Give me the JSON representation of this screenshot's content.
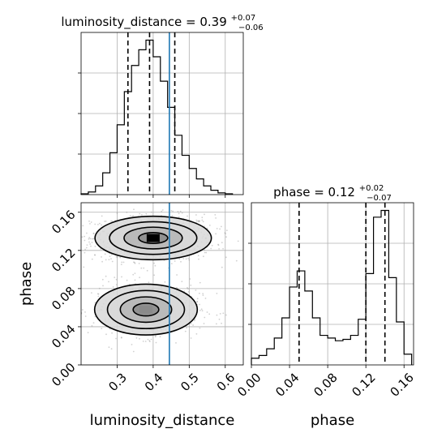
{
  "chart_data": [
    {
      "type": "histogram",
      "panel": "top-left",
      "parameter": "luminosity_distance",
      "title": {
        "prefix": "luminosity_distance = 0.39",
        "plus": "+0.07",
        "minus": "−0.06"
      },
      "xlim": [
        0.2,
        0.65
      ],
      "bin_edges": [
        0.2,
        0.22,
        0.24,
        0.26,
        0.28,
        0.3,
        0.32,
        0.34,
        0.36,
        0.38,
        0.4,
        0.42,
        0.44,
        0.46,
        0.48,
        0.5,
        0.52,
        0.54,
        0.56,
        0.58,
        0.6,
        0.62
      ],
      "counts": [
        1,
        3,
        10,
        25,
        48,
        80,
        118,
        148,
        166,
        177,
        158,
        130,
        100,
        68,
        45,
        30,
        18,
        10,
        5,
        2,
        1
      ],
      "quantiles": [
        0.33,
        0.39,
        0.46
      ],
      "truth": 0.445,
      "grid": true
    },
    {
      "type": "histogram",
      "panel": "bottom-right",
      "parameter": "phase",
      "title": {
        "prefix": "phase = 0.12",
        "plus": "+0.02",
        "minus": "−0.07"
      },
      "xlim": [
        0.0,
        0.17
      ],
      "xticks": [
        "0.00",
        "0.04",
        "0.08",
        "0.12",
        "0.16"
      ],
      "xtick_values": [
        0.0,
        0.04,
        0.08,
        0.12,
        0.16
      ],
      "xlabel": "phase",
      "bin_edges": [
        0.0,
        0.008,
        0.016,
        0.024,
        0.032,
        0.04,
        0.048,
        0.056,
        0.064,
        0.072,
        0.08,
        0.088,
        0.096,
        0.104,
        0.112,
        0.12,
        0.128,
        0.136,
        0.144,
        0.152,
        0.16,
        0.168
      ],
      "counts": [
        5,
        7,
        12,
        20,
        35,
        58,
        70,
        55,
        35,
        22,
        20,
        18,
        19,
        22,
        34,
        68,
        110,
        115,
        65,
        32,
        8
      ],
      "quantiles": [
        0.05,
        0.12,
        0.14
      ],
      "grid": true
    },
    {
      "type": "contour",
      "panel": "bottom-left",
      "x_parameter": "luminosity_distance",
      "y_parameter": "phase",
      "xlim": [
        0.2,
        0.65
      ],
      "ylim": [
        0.0,
        0.17
      ],
      "xticks": [
        "0.3",
        "0.4",
        "0.5",
        "0.6"
      ],
      "xtick_values": [
        0.3,
        0.4,
        0.5,
        0.6
      ],
      "yticks": [
        "0.00",
        "0.04",
        "0.08",
        "0.12",
        "0.16"
      ],
      "ytick_values": [
        0.0,
        0.04,
        0.08,
        0.12,
        0.16
      ],
      "xlabel": "luminosity_distance",
      "ylabel": "phase",
      "truth_x": 0.445,
      "modes": [
        {
          "center": [
            0.4,
            0.133
          ],
          "width": [
            0.085,
            0.012
          ],
          "weight": 0.6
        },
        {
          "center": [
            0.38,
            0.058
          ],
          "width": [
            0.075,
            0.014
          ],
          "weight": 0.4
        }
      ],
      "contour_levels": [
        "0.5sigma",
        "1sigma",
        "1.5sigma",
        "2sigma"
      ],
      "grid": true
    }
  ],
  "colors": {
    "truth": "#1f77b4",
    "hist_line": "#000000",
    "quantile": "#000000",
    "grid": "#b0b0b0",
    "points": "#9a9a9a",
    "fill_low": "#d8d8d8",
    "fill_mid": "#b4b4b4",
    "fill_high": "#8a8a8a",
    "fill_core": "#000000"
  }
}
